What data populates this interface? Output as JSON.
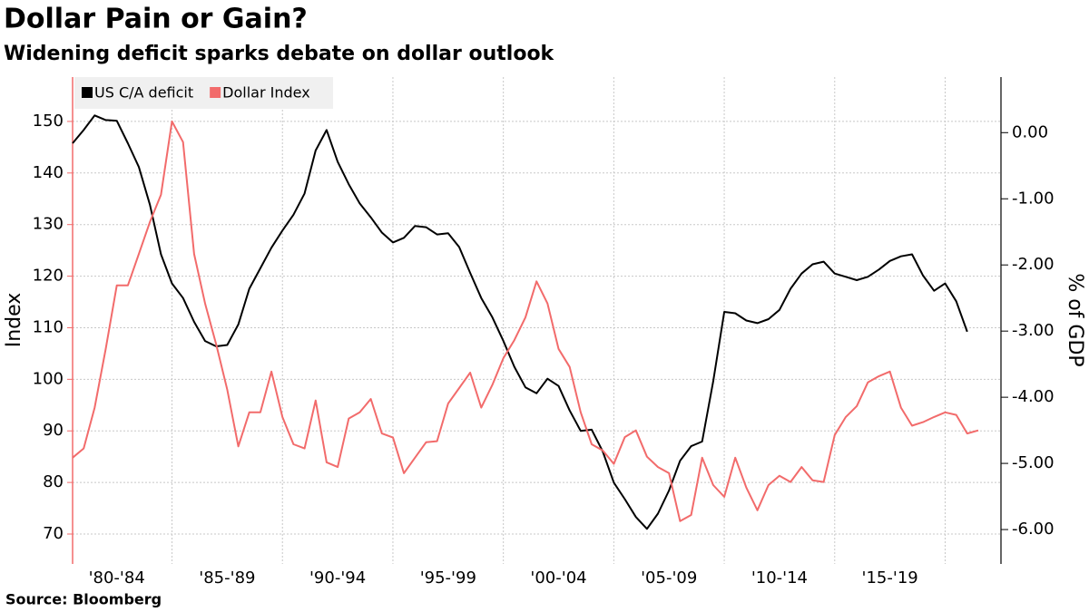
{
  "chart_data": {
    "type": "line",
    "title": "Dollar Pain or Gain?",
    "subtitle": "Widening deficit sparks debate on dollar outlook",
    "ylabel": "Index",
    "y2label": "% of GDP",
    "source": "Source: Bloomberg",
    "legend": "upper left",
    "grid": true,
    "categories": [
      null,
      null,
      null,
      null,
      "'80-'84",
      null,
      null,
      null,
      null,
      null,
      null,
      null,
      null,
      null,
      "'85-'89",
      null,
      null,
      null,
      null,
      null,
      null,
      null,
      null,
      null,
      "'90-'94",
      null,
      null,
      null,
      null,
      null,
      null,
      null,
      null,
      null,
      "'95-'99",
      null,
      null,
      null,
      null,
      null,
      null,
      null,
      null,
      null,
      "'00-'04",
      null,
      null,
      null,
      null,
      null,
      null,
      null,
      null,
      null,
      "'05-'09",
      null,
      null,
      null,
      null,
      null,
      null,
      null,
      null,
      null,
      "'10-'14",
      null,
      null,
      null,
      null,
      null,
      null,
      null,
      null,
      null,
      "'15-'19",
      null,
      null,
      null,
      null,
      null,
      null,
      null,
      null
    ],
    "ylim": [
      64.2,
      158.6
    ],
    "yticks": [
      70,
      80,
      90,
      100,
      110,
      120,
      130,
      140,
      150
    ],
    "y2lim": [
      -6.52,
      0.84
    ],
    "y2ticks": [
      {
        "value": 0,
        "label": "0.00"
      },
      {
        "value": -1,
        "label": "-1.00"
      },
      {
        "value": -2,
        "label": "-2.00"
      },
      {
        "value": -3,
        "label": "-3.00"
      },
      {
        "value": -4,
        "label": "-4.00"
      },
      {
        "value": -5,
        "label": "-5.00"
      },
      {
        "value": -6,
        "label": "-6.00"
      }
    ],
    "series": [
      {
        "name": "US C/A deficit",
        "color": "#000000",
        "axis": "y2",
        "values": [
          -0.16,
          0.04,
          0.26,
          0.19,
          0.18,
          -0.16,
          -0.52,
          -1.09,
          -1.84,
          -2.28,
          -2.5,
          -2.86,
          -3.15,
          -3.23,
          -3.21,
          -2.9,
          -2.36,
          -2.05,
          -1.74,
          -1.48,
          -1.24,
          -0.92,
          -0.27,
          0.04,
          -0.44,
          -0.78,
          -1.07,
          -1.28,
          -1.51,
          -1.66,
          -1.59,
          -1.41,
          -1.43,
          -1.54,
          -1.52,
          -1.73,
          -2.12,
          -2.5,
          -2.79,
          -3.15,
          -3.54,
          -3.85,
          -3.94,
          -3.72,
          -3.83,
          -4.2,
          -4.51,
          -4.49,
          -4.82,
          -5.29,
          -5.54,
          -5.81,
          -5.99,
          -5.76,
          -5.41,
          -4.96,
          -4.74,
          -4.67,
          -3.76,
          -2.71,
          -2.73,
          -2.84,
          -2.88,
          -2.82,
          -2.68,
          -2.36,
          -2.13,
          -1.99,
          -1.95,
          -2.13,
          -2.18,
          -2.23,
          -2.18,
          -2.07,
          -1.94,
          -1.87,
          -1.84,
          -2.16,
          -2.39,
          -2.28,
          -2.55,
          -3.01,
          null
        ]
      },
      {
        "name": "Dollar Index",
        "color": "#f26b6b",
        "values": [
          84.8,
          86.6,
          94.5,
          105.9,
          118.2,
          118.2,
          124.3,
          130.5,
          135.8,
          150.0,
          146.0,
          124.3,
          114.7,
          106.8,
          98.0,
          87.0,
          93.6,
          93.6,
          101.5,
          92.7,
          87.4,
          86.6,
          95.9,
          83.9,
          83.0,
          92.4,
          93.6,
          96.2,
          89.5,
          88.7,
          81.8,
          84.8,
          87.8,
          88.0,
          95.3,
          98.3,
          101.3,
          94.5,
          98.9,
          104.1,
          107.6,
          112.0,
          119.0,
          114.7,
          105.9,
          102.4,
          93.6,
          87.4,
          86.2,
          83.6,
          88.8,
          90.1,
          85.0,
          83.0,
          81.8,
          72.5,
          73.7,
          84.8,
          79.5,
          77.2,
          84.8,
          79.0,
          74.6,
          79.5,
          81.3,
          80.1,
          83.0,
          80.4,
          80.1,
          89.2,
          92.7,
          94.8,
          99.4,
          100.6,
          101.5,
          94.5,
          91.0,
          91.7,
          92.7,
          93.6,
          93.1,
          89.5,
          90.1
        ]
      }
    ]
  }
}
